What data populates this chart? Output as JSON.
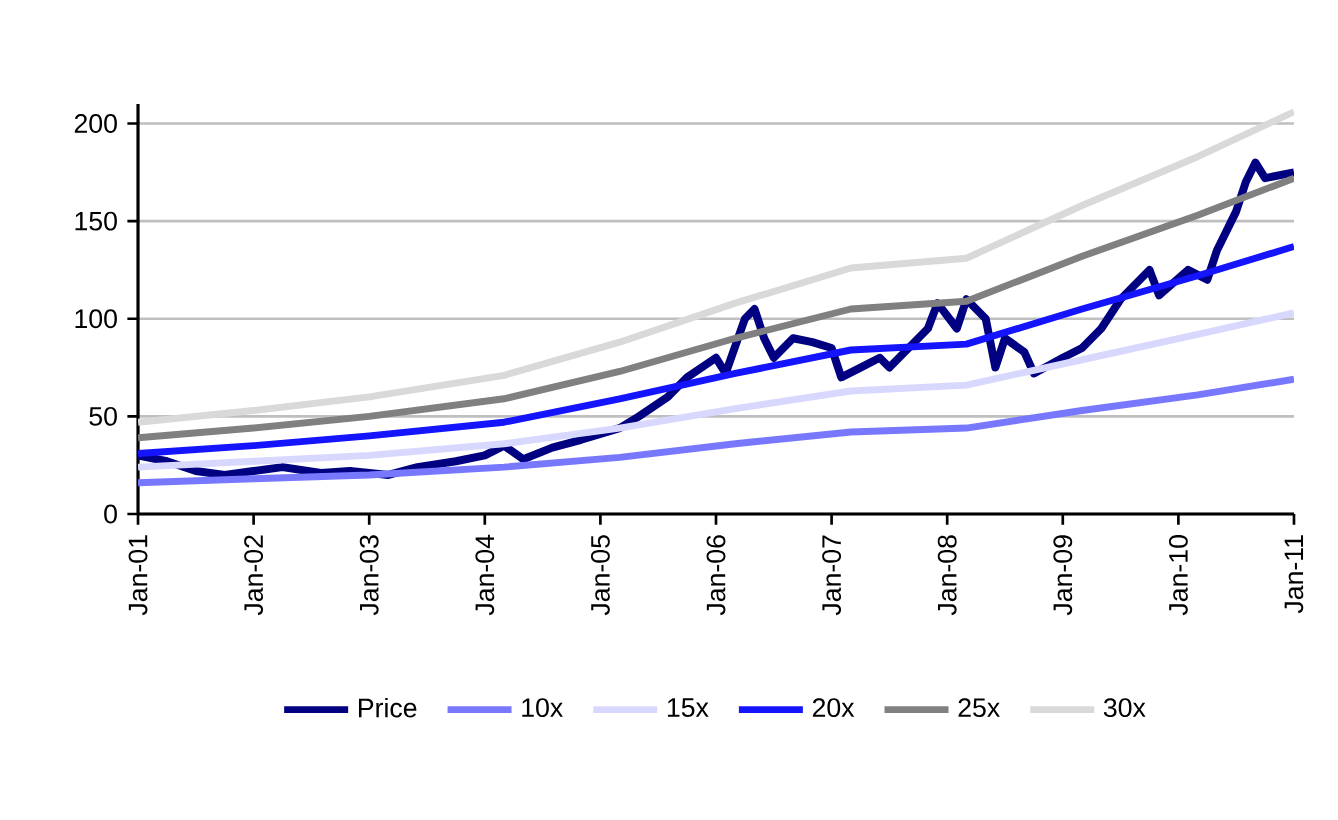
{
  "chart_data": {
    "type": "line",
    "legend": "bottom",
    "grid": "y",
    "ylim": [
      0,
      210
    ],
    "yticks": [
      0,
      50,
      100,
      150,
      200
    ],
    "xlim": [
      "2001-01",
      "2011-01"
    ],
    "xticks": [
      {
        "value": "2001-01",
        "label": "Jan-01"
      },
      {
        "value": "2002-01",
        "label": "Jan-02"
      },
      {
        "value": "2003-01",
        "label": "Jan-03"
      },
      {
        "value": "2004-01",
        "label": "Jan-04"
      },
      {
        "value": "2005-01",
        "label": "Jan-05"
      },
      {
        "value": "2006-01",
        "label": "Jan-06"
      },
      {
        "value": "2007-01",
        "label": "Jan-07"
      },
      {
        "value": "2008-01",
        "label": "Jan-08"
      },
      {
        "value": "2009-01",
        "label": "Jan-09"
      },
      {
        "value": "2010-01",
        "label": "Jan-10"
      },
      {
        "value": "2011-01",
        "label": "Jan-11"
      }
    ],
    "series": [
      {
        "name": "Price",
        "color": "#000080",
        "x": [
          "2001-01",
          "2001-04",
          "2001-07",
          "2001-10",
          "2002-01",
          "2002-04",
          "2002-08",
          "2002-11",
          "2003-03",
          "2003-06",
          "2003-10",
          "2004-01",
          "2004-03",
          "2004-05",
          "2004-08",
          "2004-11",
          "2005-03",
          "2005-05",
          "2005-08",
          "2005-10",
          "2006-01",
          "2006-02",
          "2006-04",
          "2006-05",
          "2006-06",
          "2006-07",
          "2006-09",
          "2006-11",
          "2007-01",
          "2007-02",
          "2007-04",
          "2007-06",
          "2007-07",
          "2007-09",
          "2007-11",
          "2007-12",
          "2008-02",
          "2008-03",
          "2008-05",
          "2008-06",
          "2008-07",
          "2008-09",
          "2008-10",
          "2009-01",
          "2009-03",
          "2009-05",
          "2009-07",
          "2009-08",
          "2009-10",
          "2009-11",
          "2010-02",
          "2010-04",
          "2010-05",
          "2010-07",
          "2010-08",
          "2010-09",
          "2010-10",
          "2011-01"
        ],
        "values": [
          30,
          27,
          22,
          20,
          22,
          24,
          21,
          22,
          20,
          24,
          27,
          30,
          35,
          28,
          34,
          38,
          44,
          50,
          60,
          70,
          80,
          72,
          100,
          105,
          90,
          80,
          90,
          88,
          85,
          70,
          75,
          80,
          75,
          85,
          95,
          108,
          95,
          110,
          100,
          75,
          90,
          83,
          72,
          80,
          85,
          95,
          110,
          115,
          125,
          112,
          125,
          120,
          135,
          155,
          170,
          180,
          172,
          175
        ]
      },
      {
        "name": "10x",
        "color": "#7878ff",
        "x": [
          "2001-01",
          "2002-01",
          "2003-01",
          "2004-03",
          "2005-03",
          "2006-03",
          "2007-03",
          "2008-03",
          "2009-03",
          "2010-03",
          "2011-01"
        ],
        "values": [
          16,
          18,
          20,
          24,
          29,
          36,
          42,
          44,
          53,
          61,
          69
        ]
      },
      {
        "name": "15x",
        "color": "#d8d8ff",
        "x": [
          "2001-01",
          "2002-01",
          "2003-01",
          "2004-03",
          "2005-03",
          "2006-03",
          "2007-03",
          "2008-03",
          "2009-03",
          "2010-03",
          "2011-01"
        ],
        "values": [
          24,
          27,
          30,
          36,
          44,
          54,
          63,
          66,
          79,
          92,
          103
        ]
      },
      {
        "name": "20x",
        "color": "#1414ff",
        "x": [
          "2001-01",
          "2002-01",
          "2003-01",
          "2004-03",
          "2005-03",
          "2006-03",
          "2007-03",
          "2008-03",
          "2009-03",
          "2010-03",
          "2011-01"
        ],
        "values": [
          31,
          35,
          40,
          47,
          59,
          72,
          84,
          87,
          105,
          122,
          137
        ]
      },
      {
        "name": "25x",
        "color": "#808080",
        "x": [
          "2001-01",
          "2002-01",
          "2003-01",
          "2004-03",
          "2005-03",
          "2006-03",
          "2007-03",
          "2008-03",
          "2009-03",
          "2010-03",
          "2011-01"
        ],
        "values": [
          39,
          44,
          50,
          59,
          73,
          90,
          105,
          109,
          132,
          153,
          172
        ]
      },
      {
        "name": "30x",
        "color": "#d9d9d9",
        "x": [
          "2001-01",
          "2002-01",
          "2003-01",
          "2004-03",
          "2005-03",
          "2006-03",
          "2007-03",
          "2008-03",
          "2009-03",
          "2010-03",
          "2011-01"
        ],
        "values": [
          47,
          53,
          60,
          71,
          88,
          108,
          126,
          131,
          158,
          183,
          206
        ]
      }
    ]
  }
}
